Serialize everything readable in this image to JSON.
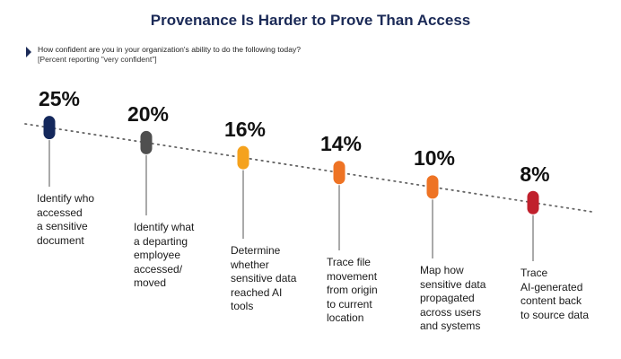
{
  "title": "Provenance Is Harder to Prove Than Access",
  "subtitle": "How confident are you in your organization's ability to do the following today?",
  "note": "[Percent reporting \"very confident\"]",
  "chart_data": {
    "type": "scatter",
    "title": "Provenance Is Harder to Prove Than Access",
    "subtitle": "How confident are you in your organization's ability to do the following today?",
    "ylabel": "",
    "xlabel": "",
    "unit": "%",
    "grid": false,
    "legend": "none",
    "trendline": "dotted",
    "categories": [
      "Identify who accessed a sensitive document",
      "Identify what a departing employee accessed/ moved",
      "Determine whether sensitive data reached AI tools",
      "Trace file movement from origin to current location",
      "Map how sensitive data propagated across users and systems",
      "Trace AI-generated content back to source data"
    ],
    "category_lines": [
      [
        "Identify who",
        "accessed",
        "a sensitive",
        "document"
      ],
      [
        "Identify what",
        "a departing",
        "employee",
        "accessed/",
        "moved"
      ],
      [
        "Determine",
        "whether",
        "sensitive data",
        "reached AI",
        "tools"
      ],
      [
        "Trace file",
        "movement",
        "from origin",
        "to current",
        "location"
      ],
      [
        "Map how",
        "sensitive data",
        "propagated",
        "across users",
        "and systems"
      ],
      [
        "Trace",
        "AI-generated",
        "content back",
        "to source data"
      ]
    ],
    "values": [
      25,
      20,
      16,
      14,
      10,
      8
    ],
    "value_labels": [
      "25%",
      "20%",
      "16%",
      "14%",
      "10%",
      "8%"
    ],
    "marker_colors": [
      "#14285c",
      "#4f4f4f",
      "#f5a21d",
      "#ee7324",
      "#ee7324",
      "#c0202c"
    ]
  }
}
